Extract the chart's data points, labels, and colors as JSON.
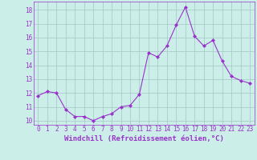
{
  "x": [
    0,
    1,
    2,
    3,
    4,
    5,
    6,
    7,
    8,
    9,
    10,
    11,
    12,
    13,
    14,
    15,
    16,
    17,
    18,
    19,
    20,
    21,
    22,
    23
  ],
  "y": [
    11.8,
    12.1,
    12.0,
    10.8,
    10.3,
    10.3,
    10.0,
    10.3,
    10.5,
    11.0,
    11.1,
    11.9,
    14.9,
    14.6,
    15.4,
    16.9,
    18.2,
    16.1,
    15.4,
    15.8,
    14.3,
    13.2,
    12.9,
    12.7
  ],
  "line_color": "#9932CC",
  "marker": "D",
  "marker_size": 2,
  "bg_color": "#cceee8",
  "grid_color": "#aacccc",
  "xlabel": "Windchill (Refroidissement éolien,°C)",
  "ylim": [
    9.7,
    18.6
  ],
  "xlim": [
    -0.5,
    23.5
  ],
  "yticks": [
    10,
    11,
    12,
    13,
    14,
    15,
    16,
    17,
    18
  ],
  "xticks": [
    0,
    1,
    2,
    3,
    4,
    5,
    6,
    7,
    8,
    9,
    10,
    11,
    12,
    13,
    14,
    15,
    16,
    17,
    18,
    19,
    20,
    21,
    22,
    23
  ],
  "tick_color": "#9932CC",
  "label_color": "#9932CC",
  "xlabel_fontsize": 6.5,
  "tick_fontsize": 5.5
}
